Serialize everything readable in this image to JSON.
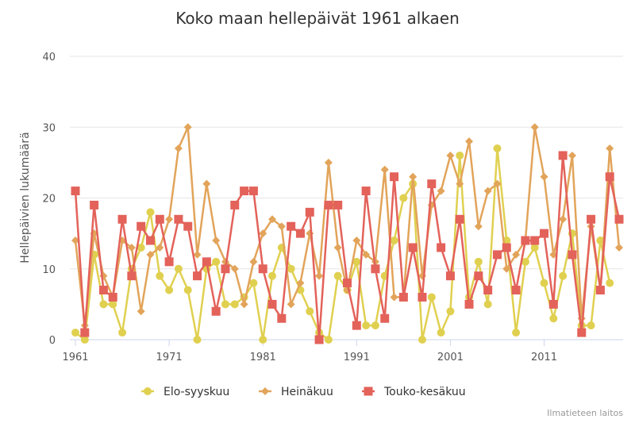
{
  "chart_data": {
    "type": "line",
    "title": "Koko maan hellepäivät 1961 alkaen",
    "ylabel": "Hellepäivien lukumäärä",
    "xlabel": "",
    "xlim": [
      1961,
      2019
    ],
    "ylim": [
      0,
      40
    ],
    "x_ticks": [
      "1961",
      "1971",
      "1981",
      "1991",
      "2001",
      "2011"
    ],
    "y_ticks": [
      "0",
      "10",
      "20",
      "30",
      "40"
    ],
    "grid": true,
    "legend_position": "bottom",
    "credit": "Ilmatieteen laitos",
    "series": [
      {
        "name": "Elo-syyskuu",
        "color": "#e0d050",
        "marker": "circle",
        "start_year": 1961,
        "values": [
          1,
          0,
          12,
          5,
          5,
          1,
          10,
          13,
          18,
          9,
          7,
          10,
          7,
          0,
          10,
          11,
          5,
          5,
          6,
          8,
          0,
          9,
          13,
          10,
          7,
          4,
          1,
          0,
          9,
          7,
          11,
          2,
          2,
          9,
          14,
          20,
          22,
          0,
          6,
          1,
          4,
          26,
          6,
          11,
          5,
          27,
          14,
          1,
          11,
          13,
          8,
          3,
          9,
          15,
          2,
          2,
          14,
          8
        ]
      },
      {
        "name": "Heinäkuu",
        "color": "#e2a45a",
        "marker": "diamond",
        "start_year": 1961,
        "values": [
          14,
          2,
          15,
          9,
          6,
          14,
          13,
          4,
          12,
          13,
          17,
          27,
          30,
          12,
          22,
          14,
          11,
          10,
          5,
          11,
          15,
          17,
          16,
          5,
          8,
          15,
          9,
          25,
          13,
          7,
          14,
          12,
          11,
          24,
          6,
          6,
          23,
          9,
          19,
          21,
          26,
          22,
          28,
          16,
          21,
          22,
          10,
          12,
          14,
          30,
          23,
          12,
          17,
          26,
          3,
          16,
          7,
          27,
          13
        ]
      },
      {
        "name": "Touko-kesäkuu",
        "color": "#e3625a",
        "marker": "square",
        "start_year": 1961,
        "values": [
          21,
          1,
          19,
          7,
          6,
          17,
          9,
          16,
          14,
          17,
          11,
          17,
          16,
          9,
          11,
          4,
          10,
          19,
          21,
          21,
          10,
          5,
          3,
          16,
          15,
          18,
          0,
          19,
          19,
          8,
          2,
          21,
          10,
          3,
          23,
          6,
          13,
          6,
          22,
          13,
          9,
          17,
          5,
          9,
          7,
          12,
          13,
          7,
          14,
          14,
          15,
          5,
          26,
          12,
          1,
          17,
          7,
          23,
          17
        ]
      }
    ]
  }
}
